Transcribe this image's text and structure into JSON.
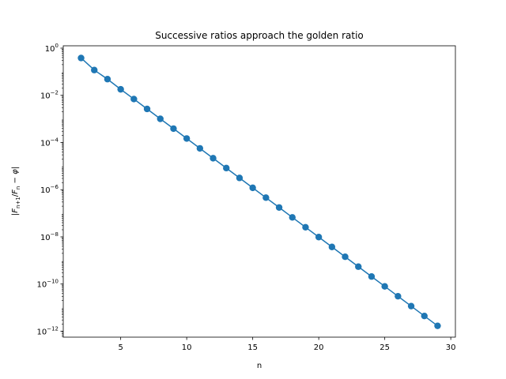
{
  "chart_data": {
    "type": "line",
    "title": "Successive ratios approach the golden ratio",
    "xlabel": "n",
    "ylabel": "|F_{n+1}/F_n − φ|",
    "y_scale": "log",
    "xlim": [
      0.65,
      30.35
    ],
    "ylim": [
      5.6e-13,
      1.26
    ],
    "grid": false,
    "legend": "none",
    "marker": "circle",
    "color": "#1f77b4",
    "x_ticks": [
      5,
      10,
      15,
      20,
      25,
      30
    ],
    "x_tick_labels": [
      "5",
      "10",
      "15",
      "20",
      "25",
      "30"
    ],
    "y_ticks": [
      1e-12,
      1e-10,
      1e-08,
      1e-06,
      0.0001,
      0.01,
      1
    ],
    "y_tick_labels": [
      {
        "base": "10",
        "exp": "−12"
      },
      {
        "base": "10",
        "exp": "−10"
      },
      {
        "base": "10",
        "exp": "−8"
      },
      {
        "base": "10",
        "exp": "−6"
      },
      {
        "base": "10",
        "exp": "−4"
      },
      {
        "base": "10",
        "exp": "−2"
      },
      {
        "base": "10",
        "exp": "0"
      }
    ],
    "series": [
      {
        "x": [
          2,
          3,
          4,
          5,
          6,
          7,
          8,
          9,
          10,
          11,
          12,
          13,
          14,
          15,
          16,
          17,
          18,
          19,
          20,
          21,
          22,
          23,
          24,
          25,
          26,
          27,
          28,
          29
        ],
        "values": [
          0.382,
          0.118,
          0.0486,
          0.018,
          0.00697,
          0.00265,
          0.00101,
          0.000388,
          0.000148,
          5.65e-05,
          2.16e-05,
          8.25e-06,
          3.15e-06,
          1.2e-06,
          4.6e-07,
          1.76e-07,
          6.71e-08,
          2.56e-08,
          9.79e-09,
          3.74e-09,
          1.43e-09,
          5.45e-10,
          2.08e-10,
          7.95e-11,
          3.04e-11,
          1.16e-11,
          4.43e-12,
          1.69e-12
        ]
      }
    ]
  }
}
